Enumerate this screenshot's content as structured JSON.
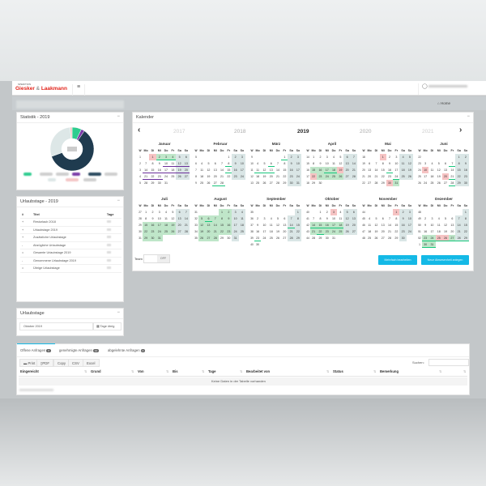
{
  "header": {
    "logo_sub": "SPEDITION",
    "logo_a": "Giesker",
    "logo_amp": " & ",
    "logo_b": "Laakmann",
    "menu_icon": "≡",
    "user_icon": "user-circle-icon"
  },
  "breadcrumb": {
    "home": "Home",
    "home_icon": "home-icon"
  },
  "statistik": {
    "title": "Statistik - 2019",
    "minimize": "−",
    "donut": [
      {
        "color": "#1f3b4f",
        "value": 60
      },
      {
        "color": "#dde7e7",
        "value": 29
      },
      {
        "color": "#f4c6c6",
        "value": 1.5
      },
      {
        "color": "#2ecc8f",
        "value": 7
      },
      {
        "color": "#7b3ba8",
        "value": 2.5
      }
    ],
    "legend_colors": [
      "#2ecc8f",
      "#d0d0d0",
      "#d0d0d0",
      "#7b3ba8",
      "#2b4a5f",
      "#d0d0d0",
      "#dde7e7",
      "#f4c6c6",
      "#d0d0d0"
    ]
  },
  "urlaubstage_table": {
    "title": "Urlaubstage - 2019",
    "minimize": "−",
    "headers": [
      "#",
      "Titel",
      "Tage"
    ],
    "rows": [
      {
        "sign": "+",
        "title": "Resturlaub 2018"
      },
      {
        "sign": "+",
        "title": "Urlaubstage 2019"
      },
      {
        "sign": "+",
        "title": "Zusätzliche Urlaubstage"
      },
      {
        "sign": "-",
        "title": "Abzügliche Urlaubstage"
      },
      {
        "sign": "=",
        "title": "Gesamte Urlaubstage 2019"
      },
      {
        "sign": "-",
        "title": "Genommene Urlaubstage 2019"
      },
      {
        "sign": "=",
        "title": "Übrige Urlaubstage"
      }
    ]
  },
  "urlaubstage": {
    "title": "Urlaubstage",
    "minimize": "−",
    "month_value": "Oktober 2019",
    "calendar_icon": "calendar-icon",
    "days_left_label": "Tage übrig"
  },
  "kalender": {
    "title": "Kalender",
    "minimize": "−",
    "prev": "‹",
    "next": "›",
    "years": [
      "2017",
      "2018",
      "2019",
      "2020",
      "2021"
    ],
    "current_year": 2019,
    "weekdays": [
      "W",
      "Mo",
      "Di",
      "Mi",
      "Do",
      "Fr",
      "Sa",
      "So"
    ],
    "months": [
      {
        "name": "Januar",
        "hol": [
          1
        ],
        "app": [
          2,
          3,
          4
        ],
        "ulg": [
          2,
          3,
          4
        ],
        "ulp": [
          10,
          11,
          12,
          13,
          14,
          15,
          16,
          17,
          18,
          19,
          20,
          21,
          22,
          23
        ]
      },
      {
        "name": "Februar",
        "hol": [],
        "app": [],
        "ulg": [
          8,
          15,
          27,
          28
        ],
        "ulp": []
      },
      {
        "name": "März",
        "hol": [],
        "app": [],
        "ulg": [
          1,
          6,
          11,
          12,
          13
        ],
        "ulp": []
      },
      {
        "name": "April",
        "hol": [
          19,
          22
        ],
        "app": [
          15,
          16,
          17,
          18,
          23,
          24,
          25,
          26
        ],
        "ulg": [
          17,
          18
        ],
        "ulp": []
      },
      {
        "name": "Mai",
        "hol": [
          1,
          30
        ],
        "app": [
          31
        ],
        "ulg": [
          16,
          24
        ],
        "ulp": []
      },
      {
        "name": "Juni",
        "hol": [
          10,
          20
        ],
        "app": [],
        "ulg": [
          7,
          21,
          28
        ],
        "ulp": []
      },
      {
        "name": "Juli",
        "hol": [],
        "app": [
          15,
          16,
          17,
          18,
          19,
          22,
          23,
          24,
          25,
          26,
          29,
          30,
          31
        ],
        "ulg": [],
        "ulp": []
      },
      {
        "name": "August",
        "hol": [],
        "app": [
          1,
          2,
          5,
          6,
          7,
          8,
          9,
          12,
          13,
          14,
          15,
          16,
          19,
          20,
          21,
          22,
          23,
          26,
          27,
          28
        ],
        "ulg": [
          6
        ],
        "ulp": []
      },
      {
        "name": "September",
        "hol": [],
        "app": [],
        "ulg": [
          14,
          23
        ],
        "ulp": []
      },
      {
        "name": "Oktober",
        "hol": [
          3
        ],
        "app": [
          14,
          15,
          16,
          17,
          18,
          21,
          22,
          23,
          24,
          25
        ],
        "ulg": [
          14,
          15,
          16,
          17,
          18,
          22
        ],
        "ulp": []
      },
      {
        "name": "November",
        "hol": [
          1
        ],
        "app": [],
        "ulg": [],
        "ulp": []
      },
      {
        "name": "Dezember",
        "hol": [
          25,
          26
        ],
        "app": [
          23,
          24,
          27,
          30,
          31
        ],
        "ulg": [
          23,
          24,
          25,
          26,
          27,
          28,
          29,
          30,
          31
        ],
        "ulp": []
      }
    ],
    "team_label": "Team",
    "toggle_state": "OFF",
    "btn_multi": "Mehrfach bearbeiten",
    "btn_new": "Neue Abwesenheit anlegen",
    "btn_color": "#14b9e6"
  },
  "requests": {
    "tabs": [
      {
        "label": "Offene Anfragen",
        "count": "0"
      },
      {
        "label": "genehmigte Anfragen",
        "count": "12"
      },
      {
        "label": "abgelehnte Anfragen",
        "count": "0"
      }
    ],
    "buttons": [
      "Print",
      "PDF",
      "Copy",
      "CSV",
      "Excel"
    ],
    "search_label": "Suchen:",
    "columns": [
      "Eingereicht",
      "Grund",
      "Von",
      "Bis",
      "Tage",
      "Bearbeitet von",
      "Status",
      "Bemerkung"
    ],
    "empty": "Keine Daten in der Tabelle vorhanden"
  }
}
